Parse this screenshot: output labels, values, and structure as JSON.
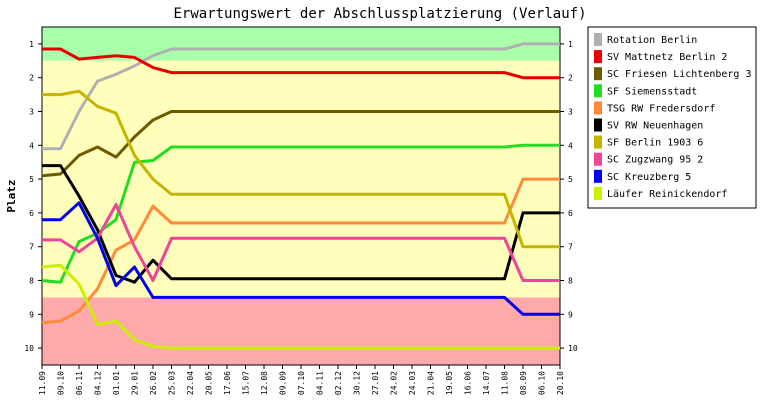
{
  "chart_data": {
    "type": "line",
    "title": "Erwartungswert der Abschlussplatzierung (Verlauf)",
    "ylabel": "Platz",
    "xlabel": "",
    "ylim": [
      10.5,
      0.5
    ],
    "y_ticks": [
      1,
      2,
      3,
      4,
      5,
      6,
      7,
      8,
      9,
      10
    ],
    "legend_position": "right",
    "grid": false,
    "zones": [
      {
        "from": 0.5,
        "to": 1.5,
        "color": "#aaffaa"
      },
      {
        "from": 1.5,
        "to": 8.5,
        "color": "#ffffbb"
      },
      {
        "from": 8.5,
        "to": 10.5,
        "color": "#ffaaaa"
      }
    ],
    "x": [
      "11.09",
      "09.10",
      "06.11",
      "04.12",
      "01.01",
      "29.01",
      "26.02",
      "25.03",
      "22.04",
      "20.05",
      "17.06",
      "15.07",
      "12.08",
      "09.09",
      "07.10",
      "04.11",
      "02.12",
      "30.12",
      "27.01",
      "24.02",
      "24.03",
      "21.04",
      "19.05",
      "16.06",
      "14.07",
      "11.08",
      "08.09",
      "06.10",
      "20.10"
    ],
    "series": [
      {
        "name": "Rotation Berlin",
        "color": "#b0b0b0",
        "values": [
          4.1,
          4.1,
          3.0,
          2.1,
          1.9,
          1.65,
          1.35,
          1.15,
          1.15,
          1.15,
          1.15,
          1.15,
          1.15,
          1.15,
          1.15,
          1.15,
          1.15,
          1.15,
          1.15,
          1.15,
          1.15,
          1.15,
          1.15,
          1.15,
          1.15,
          1.15,
          1.0,
          1.0,
          1.0
        ]
      },
      {
        "name": "SV Mattnetz Berlin 2",
        "color": "#e60000",
        "values": [
          1.15,
          1.15,
          1.45,
          1.4,
          1.35,
          1.4,
          1.7,
          1.85,
          1.85,
          1.85,
          1.85,
          1.85,
          1.85,
          1.85,
          1.85,
          1.85,
          1.85,
          1.85,
          1.85,
          1.85,
          1.85,
          1.85,
          1.85,
          1.85,
          1.85,
          1.85,
          2.0,
          2.0,
          2.0
        ]
      },
      {
        "name": "SC Friesen Lichtenberg 3",
        "color": "#6b5a00",
        "values": [
          4.9,
          4.85,
          4.3,
          4.05,
          4.35,
          3.75,
          3.25,
          3.0,
          3.0,
          3.0,
          3.0,
          3.0,
          3.0,
          3.0,
          3.0,
          3.0,
          3.0,
          3.0,
          3.0,
          3.0,
          3.0,
          3.0,
          3.0,
          3.0,
          3.0,
          3.0,
          3.0,
          3.0,
          3.0
        ]
      },
      {
        "name": "SF Siemensstadt",
        "color": "#22dd22",
        "values": [
          8.0,
          8.05,
          6.85,
          6.6,
          6.2,
          4.5,
          4.45,
          4.05,
          4.05,
          4.05,
          4.05,
          4.05,
          4.05,
          4.05,
          4.05,
          4.05,
          4.05,
          4.05,
          4.05,
          4.05,
          4.05,
          4.05,
          4.05,
          4.05,
          4.05,
          4.05,
          4.0,
          4.0,
          4.0
        ]
      },
      {
        "name": "TSG RW Fredersdorf",
        "color": "#ff8a3c",
        "values": [
          9.25,
          9.2,
          8.9,
          8.25,
          7.1,
          6.8,
          5.8,
          6.3,
          6.3,
          6.3,
          6.3,
          6.3,
          6.3,
          6.3,
          6.3,
          6.3,
          6.3,
          6.3,
          6.3,
          6.3,
          6.3,
          6.3,
          6.3,
          6.3,
          6.3,
          6.3,
          5.0,
          5.0,
          5.0
        ]
      },
      {
        "name": "SV RW Neuenhagen",
        "color": "#000000",
        "values": [
          4.6,
          4.6,
          5.5,
          6.5,
          7.85,
          8.05,
          7.4,
          7.95,
          7.95,
          7.95,
          7.95,
          7.95,
          7.95,
          7.95,
          7.95,
          7.95,
          7.95,
          7.95,
          7.95,
          7.95,
          7.95,
          7.95,
          7.95,
          7.95,
          7.95,
          7.95,
          6.0,
          6.0,
          6.0
        ]
      },
      {
        "name": "SF Berlin 1903 6",
        "color": "#c8b400",
        "values": [
          2.5,
          2.5,
          2.4,
          2.85,
          3.05,
          4.3,
          5.0,
          5.45,
          5.45,
          5.45,
          5.45,
          5.45,
          5.45,
          5.45,
          5.45,
          5.45,
          5.45,
          5.45,
          5.45,
          5.45,
          5.45,
          5.45,
          5.45,
          5.45,
          5.45,
          5.45,
          7.0,
          7.0,
          7.0
        ]
      },
      {
        "name": "SC Zugzwang 95 2",
        "color": "#ee4499",
        "values": [
          6.8,
          6.8,
          7.15,
          6.75,
          5.75,
          7.0,
          8.0,
          6.75,
          6.75,
          6.75,
          6.75,
          6.75,
          6.75,
          6.75,
          6.75,
          6.75,
          6.75,
          6.75,
          6.75,
          6.75,
          6.75,
          6.75,
          6.75,
          6.75,
          6.75,
          6.75,
          8.0,
          8.0,
          8.0
        ]
      },
      {
        "name": "SC Kreuzberg 5",
        "color": "#0000ee",
        "values": [
          6.2,
          6.2,
          5.7,
          6.75,
          8.15,
          7.6,
          8.5,
          8.5,
          8.5,
          8.5,
          8.5,
          8.5,
          8.5,
          8.5,
          8.5,
          8.5,
          8.5,
          8.5,
          8.5,
          8.5,
          8.5,
          8.5,
          8.5,
          8.5,
          8.5,
          8.5,
          9.0,
          9.0,
          9.0
        ]
      },
      {
        "name": "Läufer Reinickendorf",
        "color": "#ccee00",
        "values": [
          7.6,
          7.55,
          8.1,
          9.3,
          9.2,
          9.75,
          9.95,
          10.0,
          10.0,
          10.0,
          10.0,
          10.0,
          10.0,
          10.0,
          10.0,
          10.0,
          10.0,
          10.0,
          10.0,
          10.0,
          10.0,
          10.0,
          10.0,
          10.0,
          10.0,
          10.0,
          10.0,
          10.0,
          10.0
        ]
      }
    ]
  }
}
